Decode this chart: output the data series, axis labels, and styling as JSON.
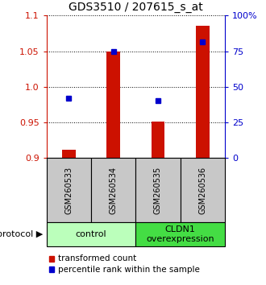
{
  "title": "GDS3510 / 207615_s_at",
  "samples": [
    "GSM260533",
    "GSM260534",
    "GSM260535",
    "GSM260536"
  ],
  "red_values": [
    0.912,
    1.05,
    0.951,
    1.086
  ],
  "blue_values": [
    0.984,
    1.05,
    0.981,
    1.063
  ],
  "ylim": [
    0.9,
    1.1
  ],
  "yticks_left": [
    0.9,
    0.95,
    1.0,
    1.05,
    1.1
  ],
  "yticks_right": [
    0,
    25,
    50,
    75,
    100
  ],
  "groups": [
    {
      "label": "control",
      "samples": [
        0,
        1
      ],
      "color": "#bbffbb"
    },
    {
      "label": "CLDN1\noverexpression",
      "samples": [
        2,
        3
      ],
      "color": "#44dd44"
    }
  ],
  "bar_color": "#cc1100",
  "square_color": "#0000cc",
  "bar_bottom": 0.9,
  "bar_width": 0.3,
  "legend_bar_label": "transformed count",
  "legend_sq_label": "percentile rank within the sample",
  "title_fontsize": 10,
  "tick_fontsize": 8,
  "sample_fontsize": 7,
  "proto_fontsize": 8,
  "legend_fontsize": 7.5,
  "bg_sample_box": "#c8c8c8",
  "spine_color_left": "#cc1100",
  "spine_color_right": "#0000cc"
}
